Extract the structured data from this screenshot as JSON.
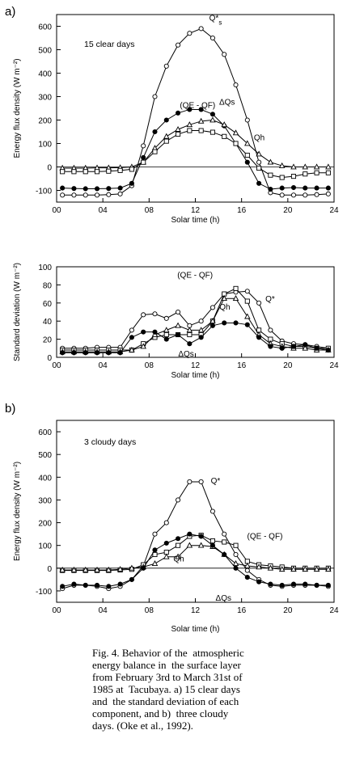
{
  "panel_a_tag": "a)",
  "panel_b_tag": "b)",
  "caption_lines": [
    "Fig. 4. Behavior of the  atmospheric",
    "energy balance in  the surface layer",
    "from February 3rd to March 31st of",
    "1985 at  Tacubaya. a) 15 clear days",
    "and  the standard deviation of each",
    "component, and b)  three cloudy",
    "days. (Oke et al., 1992)."
  ],
  "chart_data": [
    {
      "type": "line",
      "note": "15 clear days",
      "xlabel": "Solar time (h)",
      "ylabel": "Energy flux density  (W m⁻²)",
      "xlim": [
        0,
        24
      ],
      "ylim": [
        -150,
        650
      ],
      "xticks": [
        "00",
        "04",
        "08",
        "12",
        "16",
        "20",
        "24"
      ],
      "xtick_values": [
        0,
        4,
        8,
        12,
        16,
        20,
        24
      ],
      "yticks": [
        -100,
        0,
        100,
        200,
        300,
        400,
        500,
        600
      ],
      "series": [
        {
          "name": "Q*",
          "label_sub": "s",
          "marker": "open-circle",
          "x": [
            0.5,
            1.5,
            2.5,
            3.5,
            4.5,
            5.5,
            6.5,
            7.5,
            8.5,
            9.5,
            10.5,
            11.5,
            12.5,
            13.5,
            14.5,
            15.5,
            16.5,
            17.5,
            18.5,
            19.5,
            20.5,
            21.5,
            22.5,
            23.5
          ],
          "y": [
            -120,
            -120,
            -120,
            -120,
            -118,
            -115,
            -80,
            90,
            300,
            430,
            520,
            570,
            590,
            550,
            480,
            350,
            200,
            20,
            -110,
            -120,
            -120,
            -120,
            -118,
            -115
          ]
        },
        {
          "name": "ΔQs",
          "marker": "filled-circle",
          "x": [
            0.5,
            1.5,
            2.5,
            3.5,
            4.5,
            5.5,
            6.5,
            7.5,
            8.5,
            9.5,
            10.5,
            11.5,
            12.5,
            13.5,
            14.5,
            15.5,
            16.5,
            17.5,
            18.5,
            19.5,
            20.5,
            21.5,
            22.5,
            23.5
          ],
          "y": [
            -90,
            -92,
            -93,
            -93,
            -92,
            -90,
            -70,
            40,
            150,
            200,
            230,
            245,
            245,
            225,
            175,
            100,
            20,
            -70,
            -95,
            -90,
            -88,
            -90,
            -90,
            -90
          ]
        },
        {
          "name": "Qh",
          "marker": "open-triangle",
          "x": [
            0.5,
            1.5,
            2.5,
            3.5,
            4.5,
            5.5,
            6.5,
            7.5,
            8.5,
            9.5,
            10.5,
            11.5,
            12.5,
            13.5,
            14.5,
            15.5,
            16.5,
            17.5,
            18.5,
            19.5,
            20.5,
            21.5,
            22.5,
            23.5
          ],
          "y": [
            -5,
            -5,
            -5,
            -4,
            -4,
            -3,
            0,
            20,
            80,
            130,
            160,
            180,
            195,
            200,
            180,
            145,
            100,
            55,
            20,
            5,
            0,
            0,
            0,
            0
          ]
        },
        {
          "name": "(QE - QF)",
          "marker": "open-square",
          "x": [
            0.5,
            1.5,
            2.5,
            3.5,
            4.5,
            5.5,
            6.5,
            7.5,
            8.5,
            9.5,
            10.5,
            11.5,
            12.5,
            13.5,
            14.5,
            15.5,
            16.5,
            17.5,
            18.5,
            19.5,
            20.5,
            21.5,
            22.5,
            23.5
          ],
          "y": [
            -20,
            -20,
            -20,
            -20,
            -18,
            -15,
            -10,
            20,
            65,
            110,
            140,
            155,
            155,
            148,
            130,
            100,
            50,
            -5,
            -35,
            -45,
            -40,
            -30,
            -25,
            -25
          ]
        }
      ]
    },
    {
      "type": "line",
      "xlabel": "Solar time (h)",
      "ylabel": "Standard deviation  (W m⁻²)",
      "xlim": [
        0,
        24
      ],
      "ylim": [
        0,
        100
      ],
      "xticks": [
        "00",
        "04",
        "08",
        "12",
        "16",
        "20",
        "24"
      ],
      "xtick_values": [
        0,
        4,
        8,
        12,
        16,
        20,
        24
      ],
      "yticks": [
        0,
        20,
        40,
        60,
        80,
        100
      ],
      "series": [
        {
          "name": "Q*",
          "marker": "open-circle",
          "x": [
            0.5,
            1.5,
            2.5,
            3.5,
            4.5,
            5.5,
            6.5,
            7.5,
            8.5,
            9.5,
            10.5,
            11.5,
            12.5,
            13.5,
            14.5,
            15.5,
            16.5,
            17.5,
            18.5,
            19.5,
            20.5,
            21.5,
            22.5,
            23.5
          ],
          "y": [
            10,
            10,
            10,
            11,
            11,
            11,
            30,
            47,
            48,
            43,
            50,
            35,
            40,
            55,
            70,
            72,
            73,
            60,
            30,
            18,
            15,
            14,
            12,
            10
          ]
        },
        {
          "name": "(QE - QF)",
          "marker": "open-square",
          "x": [
            0.5,
            1.5,
            2.5,
            3.5,
            4.5,
            5.5,
            6.5,
            7.5,
            8.5,
            9.5,
            10.5,
            11.5,
            12.5,
            13.5,
            14.5,
            15.5,
            16.5,
            17.5,
            18.5,
            19.5,
            20.5,
            21.5,
            22.5,
            23.5
          ],
          "y": [
            8,
            8,
            8,
            8,
            8,
            8,
            8,
            15,
            22,
            25,
            25,
            25,
            25,
            40,
            70,
            76,
            62,
            30,
            20,
            15,
            12,
            12,
            10,
            10
          ]
        },
        {
          "name": "Qh",
          "marker": "open-triangle",
          "x": [
            0.5,
            1.5,
            2.5,
            3.5,
            4.5,
            5.5,
            6.5,
            7.5,
            8.5,
            9.5,
            10.5,
            11.5,
            12.5,
            13.5,
            14.5,
            15.5,
            16.5,
            17.5,
            18.5,
            19.5,
            20.5,
            21.5,
            22.5,
            23.5
          ],
          "y": [
            6,
            6,
            6,
            6,
            6,
            6,
            8,
            12,
            25,
            30,
            35,
            30,
            30,
            40,
            65,
            65,
            45,
            25,
            15,
            12,
            10,
            10,
            8,
            8
          ]
        },
        {
          "name": "ΔQs",
          "marker": "filled-circle",
          "x": [
            0.5,
            1.5,
            2.5,
            3.5,
            4.5,
            5.5,
            6.5,
            7.5,
            8.5,
            9.5,
            10.5,
            11.5,
            12.5,
            13.5,
            14.5,
            15.5,
            16.5,
            17.5,
            18.5,
            19.5,
            20.5,
            21.5,
            22.5,
            23.5
          ],
          "y": [
            5,
            5,
            5,
            5,
            5,
            5,
            22,
            28,
            28,
            20,
            25,
            15,
            22,
            35,
            38,
            38,
            36,
            22,
            12,
            10,
            12,
            14,
            10,
            8
          ]
        }
      ]
    },
    {
      "type": "line",
      "note": "3 cloudy days",
      "xlabel": "Solar time (h)",
      "ylabel": "Energy flux density  (W m⁻²)",
      "xlim": [
        0,
        24
      ],
      "ylim": [
        -150,
        650
      ],
      "xticks": [
        "00",
        "04",
        "08",
        "12",
        "16",
        "20",
        "24"
      ],
      "xtick_values": [
        0,
        4,
        8,
        12,
        16,
        20,
        24
      ],
      "yticks": [
        -100,
        0,
        100,
        200,
        300,
        400,
        500,
        600
      ],
      "series": [
        {
          "name": "Q*",
          "marker": "open-circle",
          "x": [
            0.5,
            1.5,
            2.5,
            3.5,
            4.5,
            5.5,
            6.5,
            7.5,
            8.5,
            9.5,
            10.5,
            11.5,
            12.5,
            13.5,
            14.5,
            15.5,
            16.5,
            17.5,
            18.5,
            19.5,
            20.5,
            21.5,
            22.5,
            23.5
          ],
          "y": [
            -90,
            -75,
            -75,
            -80,
            -90,
            -80,
            -50,
            10,
            150,
            200,
            300,
            380,
            380,
            250,
            150,
            60,
            -10,
            -50,
            -75,
            -80,
            -75,
            -75,
            -75,
            -80
          ]
        },
        {
          "name": "(QE - QF)",
          "marker": "open-square",
          "x": [
            0.5,
            1.5,
            2.5,
            3.5,
            4.5,
            5.5,
            6.5,
            7.5,
            8.5,
            9.5,
            10.5,
            11.5,
            12.5,
            13.5,
            14.5,
            15.5,
            16.5,
            17.5,
            18.5,
            19.5,
            20.5,
            21.5,
            22.5,
            23.5
          ],
          "y": [
            -10,
            -10,
            -10,
            -10,
            -10,
            -8,
            -5,
            15,
            60,
            70,
            100,
            140,
            145,
            120,
            115,
            100,
            30,
            15,
            10,
            5,
            0,
            0,
            0,
            0
          ]
        },
        {
          "name": "Qh",
          "marker": "open-triangle",
          "x": [
            0.5,
            1.5,
            2.5,
            3.5,
            4.5,
            5.5,
            6.5,
            7.5,
            8.5,
            9.5,
            10.5,
            11.5,
            12.5,
            13.5,
            14.5,
            15.5,
            16.5,
            17.5,
            18.5,
            19.5,
            20.5,
            21.5,
            22.5,
            23.5
          ],
          "y": [
            -8,
            -8,
            -8,
            -8,
            -8,
            -5,
            0,
            5,
            20,
            50,
            50,
            100,
            100,
            95,
            60,
            20,
            10,
            5,
            0,
            -5,
            -5,
            -5,
            -5,
            -5
          ]
        },
        {
          "name": "ΔQs",
          "marker": "filled-circle",
          "x": [
            0.5,
            1.5,
            2.5,
            3.5,
            4.5,
            5.5,
            6.5,
            7.5,
            8.5,
            9.5,
            10.5,
            11.5,
            12.5,
            13.5,
            14.5,
            15.5,
            16.5,
            17.5,
            18.5,
            19.5,
            20.5,
            21.5,
            22.5,
            23.5
          ],
          "y": [
            -80,
            -70,
            -75,
            -75,
            -80,
            -70,
            -50,
            0,
            80,
            110,
            130,
            150,
            140,
            100,
            60,
            0,
            -40,
            -60,
            -70,
            -75,
            -70,
            -70,
            -75,
            -75
          ]
        }
      ]
    }
  ]
}
